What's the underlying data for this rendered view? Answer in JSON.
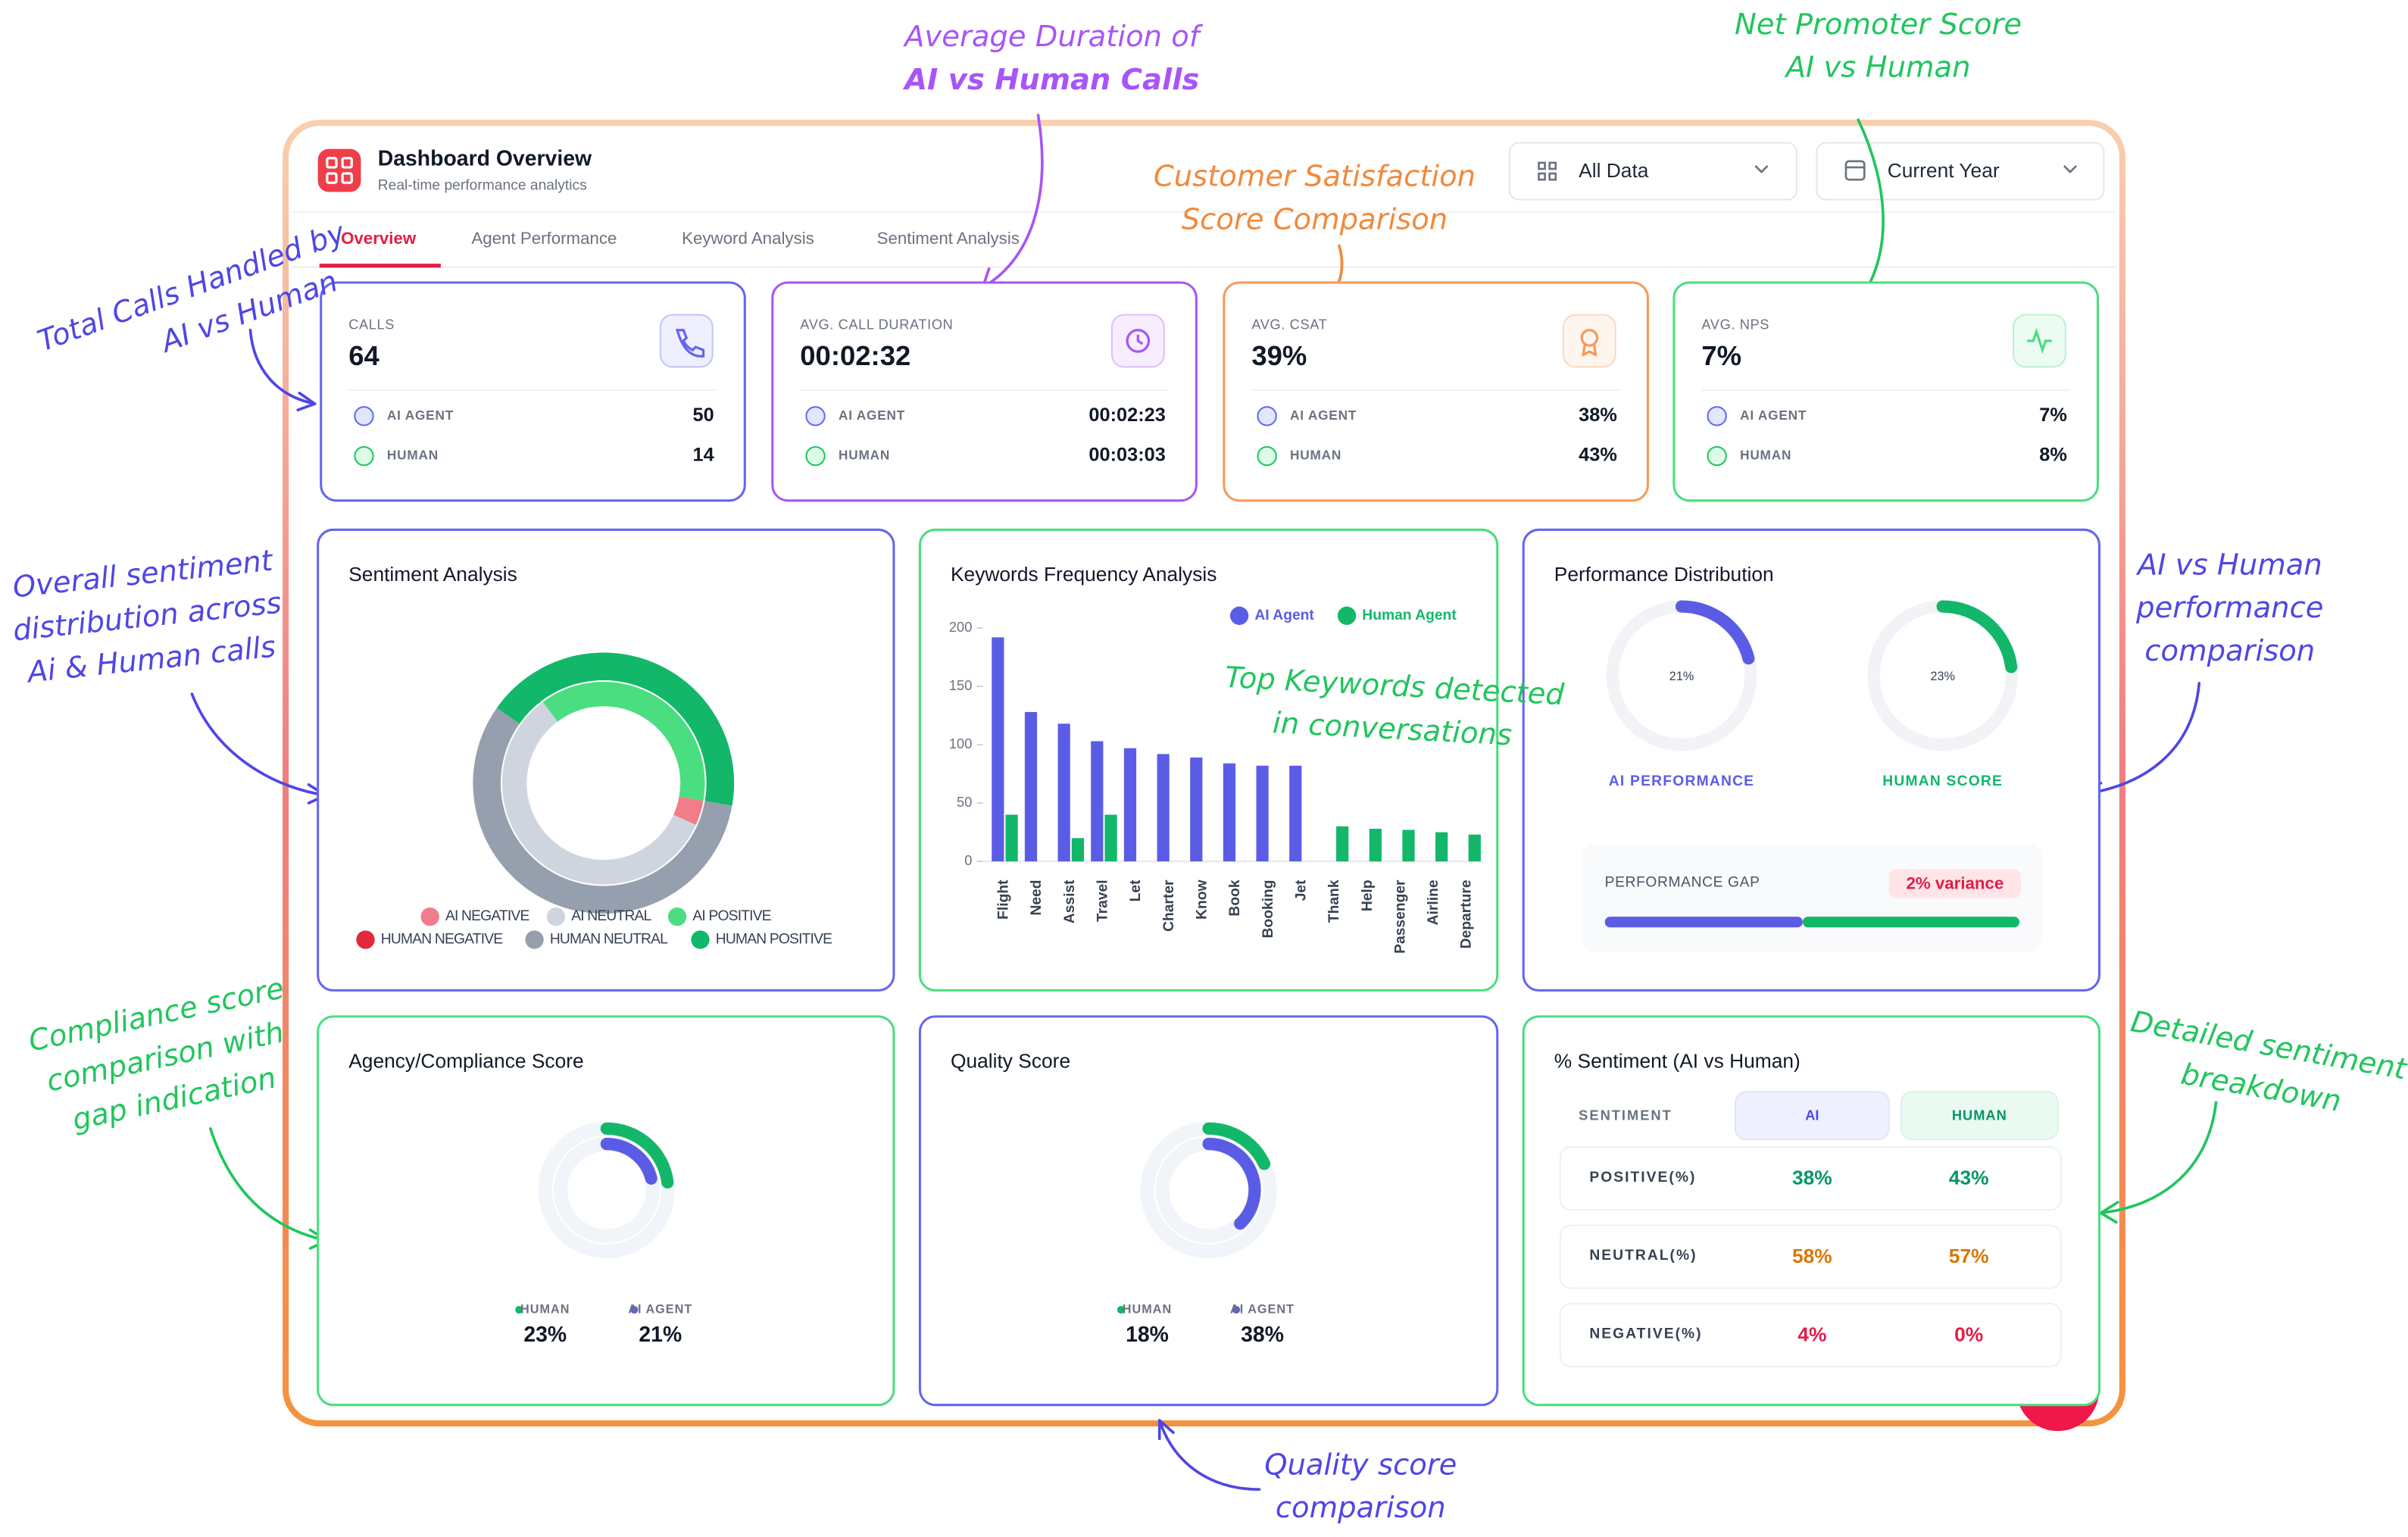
{
  "header": {
    "title": "Dashboard Overview",
    "subtitle": "Real-time performance analytics"
  },
  "filters": [
    "All Data",
    "Current Year"
  ],
  "tabs": [
    "Overview",
    "Agent Performance",
    "Keyword Analysis",
    "Sentiment Analysis"
  ],
  "kpis": [
    {
      "label": "CALLS",
      "value": "64",
      "color": "#6366f1",
      "rows": [
        {
          "label": "AI AGENT",
          "value": "50"
        },
        {
          "label": "HUMAN",
          "value": "14"
        }
      ]
    },
    {
      "label": "AVG. CALL DURATION",
      "value": "00:02:32",
      "color": "#a855f7",
      "rows": [
        {
          "label": "AI AGENT",
          "value": "00:02:23"
        },
        {
          "label": "HUMAN",
          "value": "00:03:03"
        }
      ]
    },
    {
      "label": "AVG. CSAT",
      "value": "39%",
      "color": "#f59a5a",
      "rows": [
        {
          "label": "AI AGENT",
          "value": "38%"
        },
        {
          "label": "HUMAN",
          "value": "43%"
        }
      ]
    },
    {
      "label": "AVG. NPS",
      "value": "7%",
      "color": "#4ade80",
      "rows": [
        {
          "label": "AI AGENT",
          "value": "7%"
        },
        {
          "label": "HUMAN",
          "value": "8%"
        }
      ]
    }
  ],
  "sentiment_chart": {
    "type": "donut",
    "title": "Sentiment Analysis",
    "rings": [
      [
        {
          "name": "AI NEGATIVE",
          "color": "#f17c8a",
          "value": 4
        },
        {
          "name": "AI NEUTRAL",
          "color": "#cfd5de",
          "value": 58
        },
        {
          "name": "AI POSITIVE",
          "color": "#4ade80",
          "value": 38
        }
      ],
      [
        {
          "name": "HUMAN NEGATIVE",
          "color": "#e2283c",
          "value": 0
        },
        {
          "name": "HUMAN NEUTRAL",
          "color": "#959fad",
          "value": 57
        },
        {
          "name": "HUMAN POSITIVE",
          "color": "#12b76a",
          "value": 43
        }
      ]
    ]
  },
  "keywords_chart": {
    "type": "bar",
    "title": "Keywords Frequency Analysis",
    "categories": [
      "Flight",
      "Need",
      "Assist",
      "Travel",
      "Let",
      "Charter",
      "Know",
      "Book",
      "Booking",
      "Jet",
      "Thank",
      "Help",
      "Passenger",
      "Airline",
      "Departure"
    ],
    "series": [
      {
        "name": "AI Agent",
        "color": "#5b5ce6",
        "values": [
          192,
          128,
          118,
          103,
          97,
          92,
          89,
          84,
          82,
          82,
          0,
          0,
          0,
          0,
          0
        ]
      },
      {
        "name": "Human Agent",
        "color": "#12b76a",
        "values": [
          40,
          0,
          20,
          40,
          0,
          0,
          0,
          0,
          0,
          0,
          30,
          28,
          27,
          25,
          23
        ]
      }
    ],
    "ylim": [
      0,
      200
    ],
    "yticks": [
      0,
      50,
      100,
      150,
      200
    ]
  },
  "performance": {
    "title": "Performance Distribution",
    "gauges": [
      {
        "name": "AI PERFORMANCE",
        "value": 21,
        "value_label": "21%",
        "color": "#5b5ce6"
      },
      {
        "name": "HUMAN SCORE",
        "value": 23,
        "value_label": "23%",
        "color": "#12b76a"
      }
    ],
    "gap": {
      "label": "PERFORMANCE GAP",
      "value_label": "2% variance"
    }
  },
  "compliance": {
    "title": "Agency/Compliance Score",
    "series": [
      {
        "name": "HUMAN",
        "value": 23,
        "value_label": "23%",
        "color": "#12b76a"
      },
      {
        "name": "AI AGENT",
        "value": 21,
        "value_label": "21%",
        "color": "#5b5ce6"
      }
    ]
  },
  "quality": {
    "title": "Quality Score",
    "series": [
      {
        "name": "HUMAN",
        "value": 18,
        "value_label": "18%",
        "color": "#12b76a"
      },
      {
        "name": "AI AGENT",
        "value": 38,
        "value_label": "38%",
        "color": "#5b5ce6"
      }
    ]
  },
  "sentiment_table": {
    "title": "% Sentiment (AI vs Human)",
    "columns": [
      "SENTIMENT",
      "AI",
      "HUMAN"
    ],
    "rows": [
      [
        "POSITIVE(%)",
        "38%",
        "43%"
      ],
      [
        "NEUTRAL(%)",
        "58%",
        "57%"
      ],
      [
        "NEGATIVE(%)",
        "4%",
        "0%"
      ]
    ],
    "row_colors": [
      "#059669",
      "#d97706",
      "#e11d48"
    ]
  },
  "annotations": [
    {
      "lines": [
        "Average Duration of",
        "AI vs Human Calls"
      ],
      "color": "#a855f7"
    },
    {
      "lines": [
        "Net Promoter Score",
        "AI vs Human"
      ],
      "color": "#22c55e"
    },
    {
      "lines": [
        "Customer Satisfaction",
        "Score Comparison"
      ],
      "color": "#f08a3c"
    },
    {
      "lines": [
        "Total Calls Handled by",
        "AI vs Human"
      ],
      "color": "#4f46e5"
    },
    {
      "lines": [
        "Overall sentiment",
        "distribution across",
        "Ai & Human calls"
      ],
      "color": "#4f46e5"
    },
    {
      "lines": [
        "Top Keywords detected",
        "in conversations"
      ],
      "color": "#22c55e"
    },
    {
      "lines": [
        "AI vs Human",
        "performance",
        "comparison"
      ],
      "color": "#4f46e5"
    },
    {
      "lines": [
        "Compliance score",
        "comparison with",
        "gap indication"
      ],
      "color": "#22c55e"
    },
    {
      "lines": [
        "Detailed sentiment",
        "breakdown"
      ],
      "color": "#22c55e"
    },
    {
      "lines": [
        "Quality score",
        "comparison"
      ],
      "color": "#4f46e5"
    }
  ]
}
